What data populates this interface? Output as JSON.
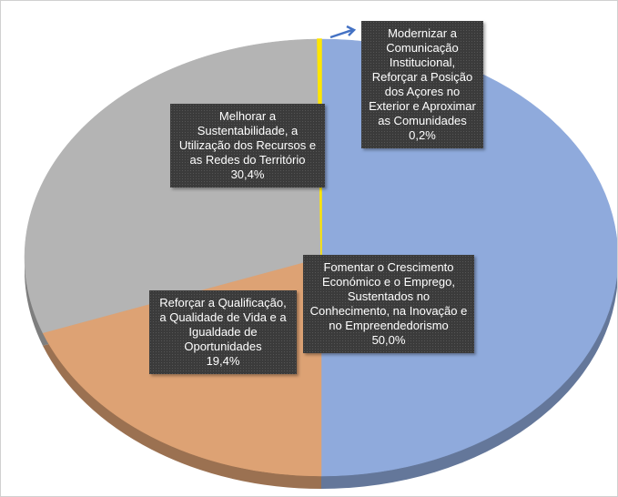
{
  "chart_data": {
    "type": "pie",
    "categories": [
      "Fomentar o Crescimento Económico e o Emprego, Sustentados no Conhecimento, na Inovação e no Empreendedorismo",
      "Reforçar a Qualificação, a Qualidade de Vida e a Igualdade de Oportunidades",
      "Melhorar a Sustentabilidade, a Utilização dos Recursos e as Redes do Território",
      "Modernizar a Comunicação Institucional, Reforçar a Posição dos Açores no Exterior e Aproximar as Comunidades"
    ],
    "values": [
      50.0,
      19.4,
      30.4,
      0.2
    ],
    "value_labels": [
      "50,0%",
      "19,4%",
      "30,4%",
      "0,2%"
    ],
    "colors": [
      "#8faadc",
      "#dda274",
      "#b4b4b4",
      "#ffe600"
    ]
  }
}
